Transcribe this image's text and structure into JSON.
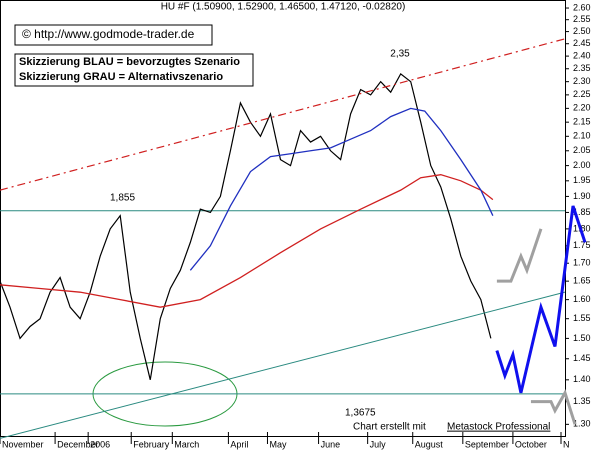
{
  "chart_data": {
    "type": "line",
    "header": "HU #F (1.50900, 1.52900, 1.46500, 1.47120, -0.02820)",
    "copyright": "© http://www.godmode-trader.de",
    "note_blue": "Skizzierung BLAU = bevorzugtes Szenario",
    "note_grey": "Skizzierung GRAU = Alternativszenario",
    "credit": "Chart erstellt mit",
    "credit_link": "Metastock Professional",
    "log_scale": true,
    "xlim": [
      0,
      282
    ],
    "xticks": [
      {
        "value": 0,
        "label": "November"
      },
      {
        "value": 27.5,
        "label": "December"
      },
      {
        "value": 44,
        "label": "2006"
      },
      {
        "value": 65.5,
        "label": "February"
      },
      {
        "value": 86,
        "label": "March"
      },
      {
        "value": 114,
        "label": "April"
      },
      {
        "value": 133.5,
        "label": "May"
      },
      {
        "value": 159,
        "label": "June"
      },
      {
        "value": 183.5,
        "label": "July"
      },
      {
        "value": 206,
        "label": "August"
      },
      {
        "value": 231,
        "label": "September"
      },
      {
        "value": 256,
        "label": "October"
      },
      {
        "value": 280,
        "label": "N"
      }
    ],
    "ylim": [
      1.275,
      2.635
    ],
    "yticks": [
      {
        "value": 2.6,
        "label": "2.60"
      },
      2.55,
      {
        "value": 2.5,
        "label": "2.50"
      },
      2.45,
      {
        "value": 2.4,
        "label": "2.40"
      },
      2.35,
      {
        "value": 2.3,
        "label": "2.30"
      },
      2.25,
      {
        "value": 2.2,
        "label": "2.20"
      },
      2.15,
      {
        "value": 2.1,
        "label": "2.10"
      },
      2.05,
      {
        "value": 2.0,
        "label": "2.00"
      },
      1.95,
      {
        "value": 1.9,
        "label": "1.90"
      },
      1.85,
      {
        "value": 1.8,
        "label": "1.80"
      },
      1.75,
      {
        "value": 1.7,
        "label": "1.70"
      },
      1.65,
      {
        "value": 1.6,
        "label": "1.60"
      },
      1.55,
      {
        "value": 1.5,
        "label": "1.50"
      },
      1.45,
      {
        "value": 1.4,
        "label": "1.40"
      },
      1.35,
      {
        "value": 1.3,
        "label": "1.30"
      }
    ],
    "lines": [
      {
        "color": "#000000",
        "width": 1.2,
        "x": [
          0,
          5,
          10,
          15,
          20,
          25,
          30,
          35,
          40,
          45,
          50,
          55,
          60,
          65,
          70,
          75,
          80,
          85,
          90,
          95,
          100,
          105,
          110,
          115,
          120,
          125,
          130,
          135,
          140,
          145,
          150,
          155,
          160,
          165,
          170,
          175,
          180,
          185,
          190,
          195,
          200,
          205,
          210,
          215,
          220,
          225,
          230,
          235,
          240,
          245
        ],
        "values": [
          1.65,
          1.58,
          1.5,
          1.53,
          1.55,
          1.62,
          1.66,
          1.58,
          1.55,
          1.62,
          1.72,
          1.8,
          1.84,
          1.62,
          1.5,
          1.4,
          1.55,
          1.63,
          1.68,
          1.76,
          1.86,
          1.85,
          1.9,
          2.05,
          2.22,
          2.15,
          2.1,
          2.18,
          2.02,
          2.0,
          2.12,
          2.08,
          2.1,
          2.05,
          2.02,
          2.18,
          2.27,
          2.25,
          2.3,
          2.26,
          2.33,
          2.3,
          2.15,
          2.0,
          1.93,
          1.83,
          1.72,
          1.65,
          1.6,
          1.5
        ]
      },
      {
        "color": "#d02020",
        "width": 1.3,
        "x": [
          0,
          20,
          40,
          60,
          80,
          100,
          120,
          140,
          160,
          180,
          200,
          210,
          220,
          230,
          240,
          246
        ],
        "values": [
          1.64,
          1.63,
          1.62,
          1.6,
          1.58,
          1.6,
          1.66,
          1.73,
          1.8,
          1.86,
          1.92,
          1.96,
          1.97,
          1.95,
          1.92,
          1.89
        ]
      },
      {
        "color": "#2030c0",
        "width": 1.3,
        "x": [
          95,
          105,
          115,
          125,
          135,
          145,
          155,
          165,
          175,
          185,
          195,
          205,
          212,
          220,
          230,
          240,
          246
        ],
        "values": [
          1.68,
          1.75,
          1.87,
          1.98,
          2.03,
          2.04,
          2.05,
          2.06,
          2.09,
          2.12,
          2.17,
          2.2,
          2.19,
          2.12,
          2.02,
          1.92,
          1.84
        ]
      },
      {
        "color": "#d02020",
        "width": 1.2,
        "dash": true,
        "x": [
          0,
          282
        ],
        "values": [
          1.92,
          2.47
        ]
      },
      {
        "color": "#2a8a80",
        "width": 1,
        "x": [
          0,
          282
        ],
        "values": [
          1.27,
          1.62
        ]
      },
      {
        "color": "#1010ee",
        "width": 3,
        "x": [
          248,
          252,
          256,
          260,
          270,
          277,
          286,
          292
        ],
        "values": [
          1.47,
          1.41,
          1.46,
          1.37,
          1.58,
          1.48,
          1.87,
          1.76
        ]
      },
      {
        "color": "#a0a0a0",
        "width": 3,
        "x": [
          248,
          255,
          260,
          263,
          270
        ],
        "values": [
          1.65,
          1.65,
          1.72,
          1.68,
          1.8
        ]
      },
      {
        "color": "#a0a0a0",
        "width": 3,
        "x": [
          265,
          275,
          277,
          282,
          287
        ],
        "values": [
          1.35,
          1.35,
          1.33,
          1.37,
          1.3
        ]
      }
    ],
    "levels": [
      {
        "value": 1.855,
        "label": "1,855"
      },
      {
        "value": 1.3675,
        "label": "1,3675"
      }
    ],
    "peak": {
      "value": 2.35,
      "label": "2,35"
    }
  }
}
